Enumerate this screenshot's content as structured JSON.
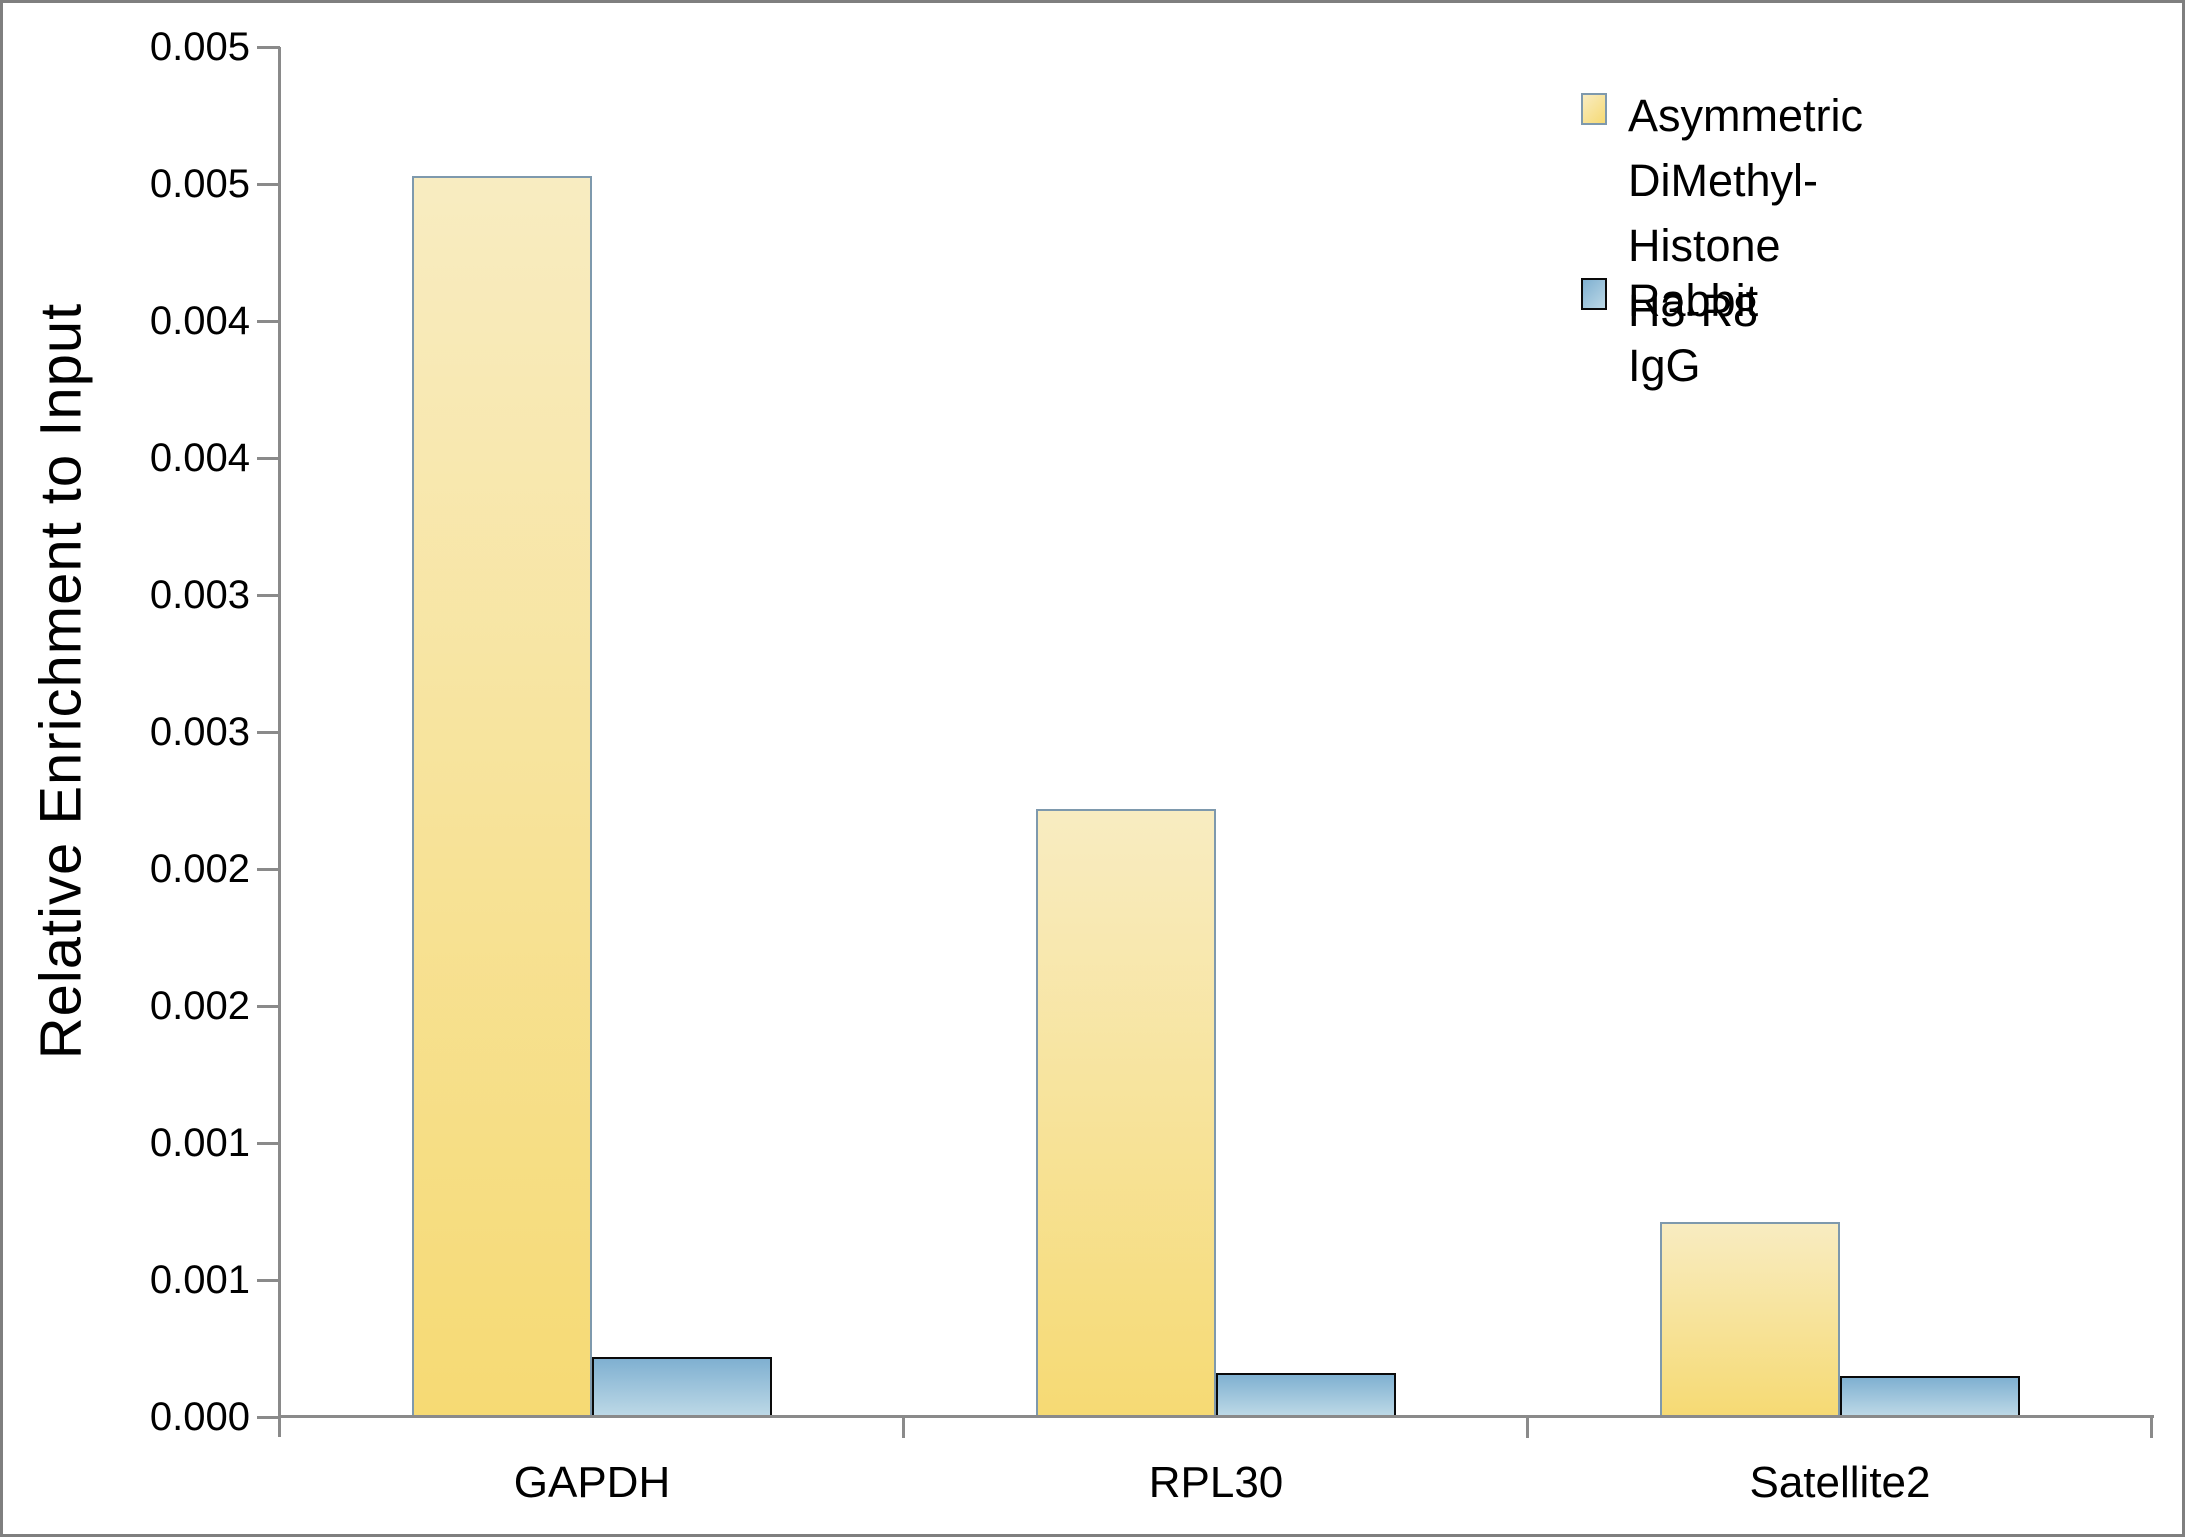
{
  "figure": {
    "background": "#ffffff",
    "frame_color": "#7f7f7f",
    "axis_color": "#8a8a8a",
    "text_color": "#000000"
  },
  "chart_data": {
    "type": "bar",
    "title": "",
    "xlabel": "",
    "ylabel": "Relative Enrichment to Input",
    "categories": [
      "GAPDH",
      "RPL30",
      "Satellite2"
    ],
    "series": [
      {
        "name": "Asymmetric DiMethyl-\nHistone H3-R8",
        "values": [
          0.00453,
          0.00222,
          0.00071
        ],
        "fill_top": "#f8ecc1",
        "fill_bottom": "#f6da74",
        "border": "#7e99ad"
      },
      {
        "name": "Rabbit IgG",
        "values": [
          0.00022,
          0.00016,
          0.00015
        ],
        "fill_top": "#7fb0d1",
        "fill_bottom": "#bcd8e6",
        "border": "#0a0a0a"
      }
    ],
    "ylim": [
      0,
      0.005
    ],
    "ytick_interval": 0.0005,
    "ytick_labels_top_to_bottom": [
      "0.005",
      "0.005",
      "0.004",
      "0.004",
      "0.003",
      "0.003",
      "0.002",
      "0.002",
      "0.001",
      "0.001",
      "0.000"
    ],
    "grid": false,
    "legend_position": "top-right"
  }
}
